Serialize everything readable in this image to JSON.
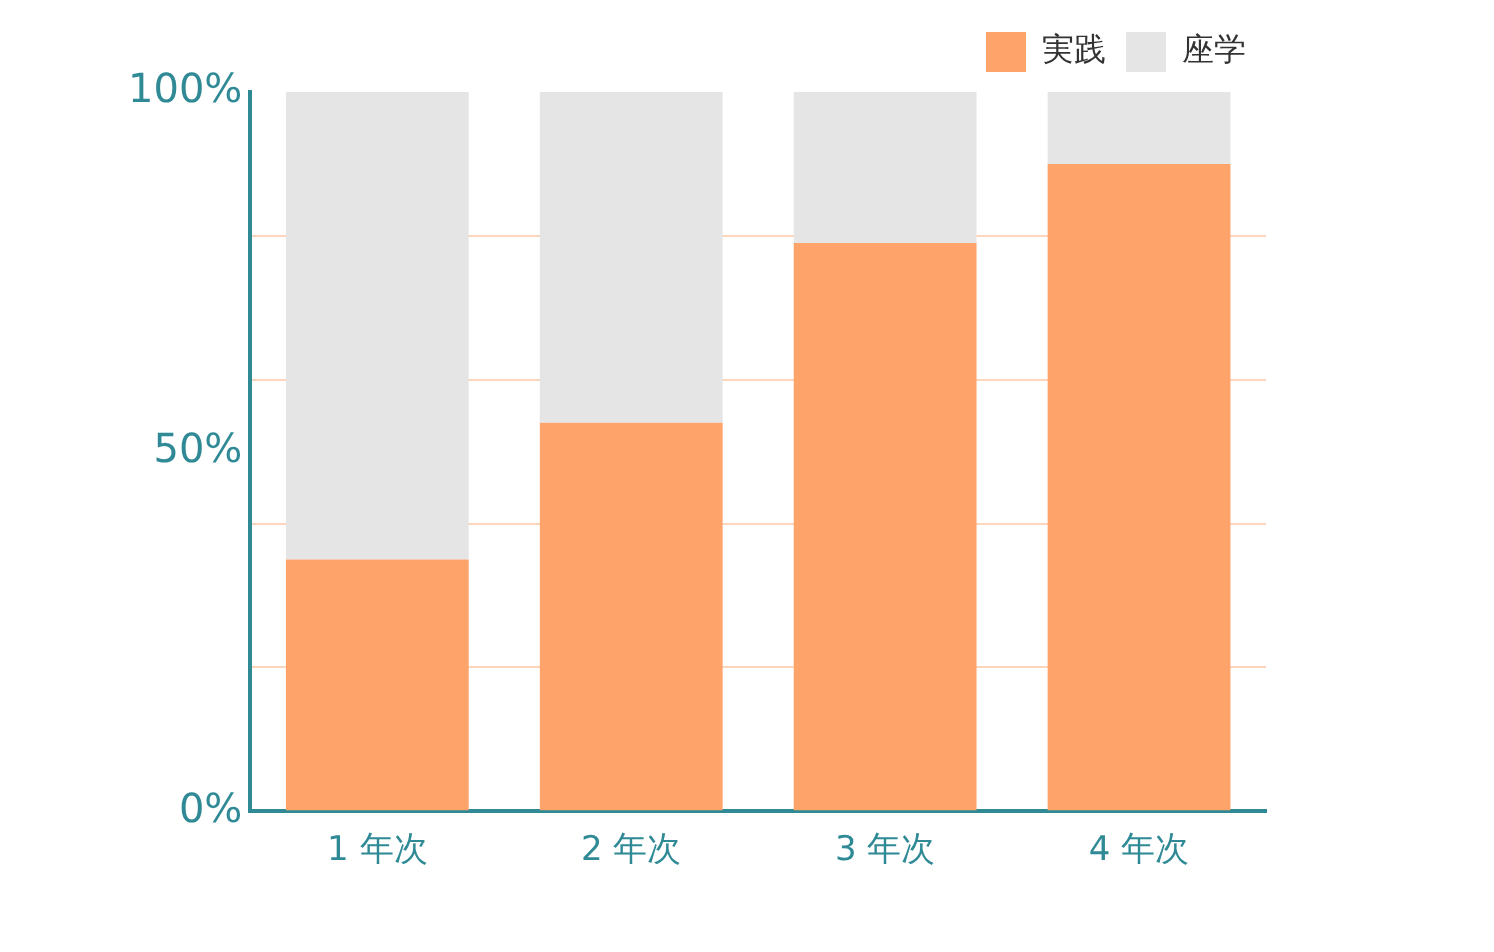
{
  "chart_data": {
    "type": "bar",
    "stacked": true,
    "categories": [
      "1 年次",
      "2 年次",
      "3 年次",
      "4 年次"
    ],
    "series": [
      {
        "name": "実践",
        "color": "#fea46b",
        "values": [
          35,
          54,
          79,
          90
        ]
      },
      {
        "name": "座学",
        "color": "#e5e5e5",
        "values": [
          65,
          46,
          21,
          10
        ]
      }
    ],
    "ylim": [
      0,
      100
    ],
    "yticks": [
      {
        "value": 0,
        "label": "0%"
      },
      {
        "value": 20,
        "label": null
      },
      {
        "value": 40,
        "label": null
      },
      {
        "value": 50,
        "label": "50%"
      },
      {
        "value": 60,
        "label": null
      },
      {
        "value": 80,
        "label": null
      },
      {
        "value": 100,
        "label": "100%"
      }
    ],
    "grid": "y",
    "legend": "top right"
  }
}
